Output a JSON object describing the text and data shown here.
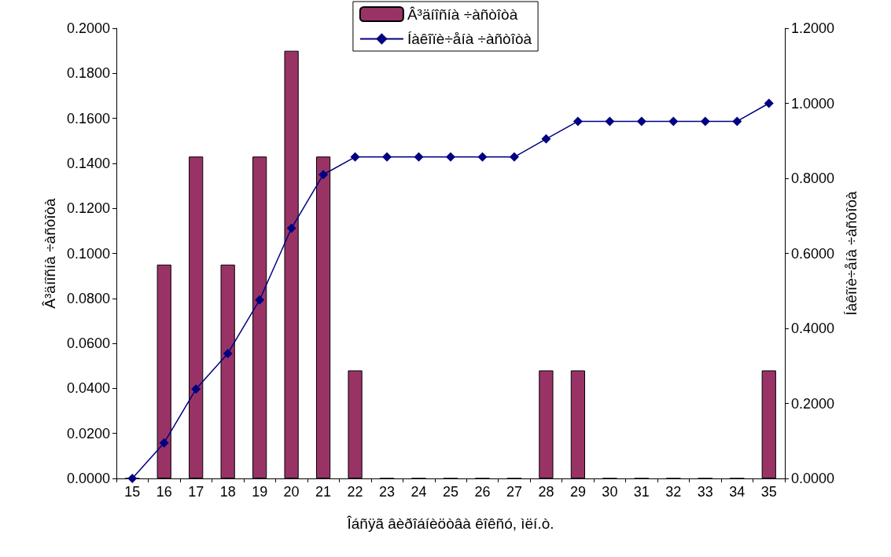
{
  "chart_data": {
    "type": "bar",
    "xlabel": "Îáñÿã âèðîáíèöòâà êîêñó, ìëí.ò.",
    "ylabel": "Â³äíîñíà ÷àñòîòà",
    "y2label": "Íàêîïè÷åíà ÷àñòîòà",
    "categories": [
      "15",
      "16",
      "17",
      "18",
      "19",
      "20",
      "21",
      "22",
      "23",
      "24",
      "25",
      "26",
      "27",
      "28",
      "29",
      "30",
      "31",
      "32",
      "33",
      "34",
      "35"
    ],
    "series": [
      {
        "name": "Â³äíîñíà ÷àñòîòà",
        "color": "#993366",
        "values": [
          0,
          0.095,
          0.143,
          0.095,
          0.143,
          0.19,
          0.143,
          0.048,
          0,
          0,
          0,
          0,
          0,
          0.048,
          0.048,
          0,
          0,
          0,
          0,
          0,
          0.048
        ]
      },
      {
        "name": "Íàêîïè÷åíà ÷àñòîòà",
        "type": "line",
        "axis": "y2",
        "color": "#000080",
        "marker": "diamond",
        "line_style": "solid",
        "values": [
          0,
          0.095,
          0.238,
          0.333,
          0.476,
          0.667,
          0.81,
          0.857,
          0.857,
          0.857,
          0.857,
          0.857,
          0.857,
          0.905,
          0.952,
          0.952,
          0.952,
          0.952,
          0.952,
          0.952,
          1.0
        ]
      }
    ],
    "ylim": [
      0,
      0.2
    ],
    "yticks": [
      {
        "value": 0,
        "label": "0.0000"
      },
      {
        "value": 0.02,
        "label": "0.0200"
      },
      {
        "value": 0.04,
        "label": "0.0400"
      },
      {
        "value": 0.06,
        "label": "0.0600"
      },
      {
        "value": 0.08,
        "label": "0.0800"
      },
      {
        "value": 0.1,
        "label": "0.1000"
      },
      {
        "value": 0.12,
        "label": "0.1200"
      },
      {
        "value": 0.14,
        "label": "0.1400"
      },
      {
        "value": 0.16,
        "label": "0.1600"
      },
      {
        "value": 0.18,
        "label": "0.1800"
      },
      {
        "value": 0.2,
        "label": "0.2000"
      }
    ],
    "y2lim": [
      0,
      1.2
    ],
    "y2ticks": [
      {
        "value": 0,
        "label": "0.0000"
      },
      {
        "value": 0.2,
        "label": "0.2000"
      },
      {
        "value": 0.4,
        "label": "0.4000"
      },
      {
        "value": 0.6,
        "label": "0.6000"
      },
      {
        "value": 0.8,
        "label": "0.8000"
      },
      {
        "value": 1,
        "label": "1.0000"
      },
      {
        "value": 1.2,
        "label": "1.2000"
      }
    ],
    "grid": false,
    "legend": "top"
  }
}
